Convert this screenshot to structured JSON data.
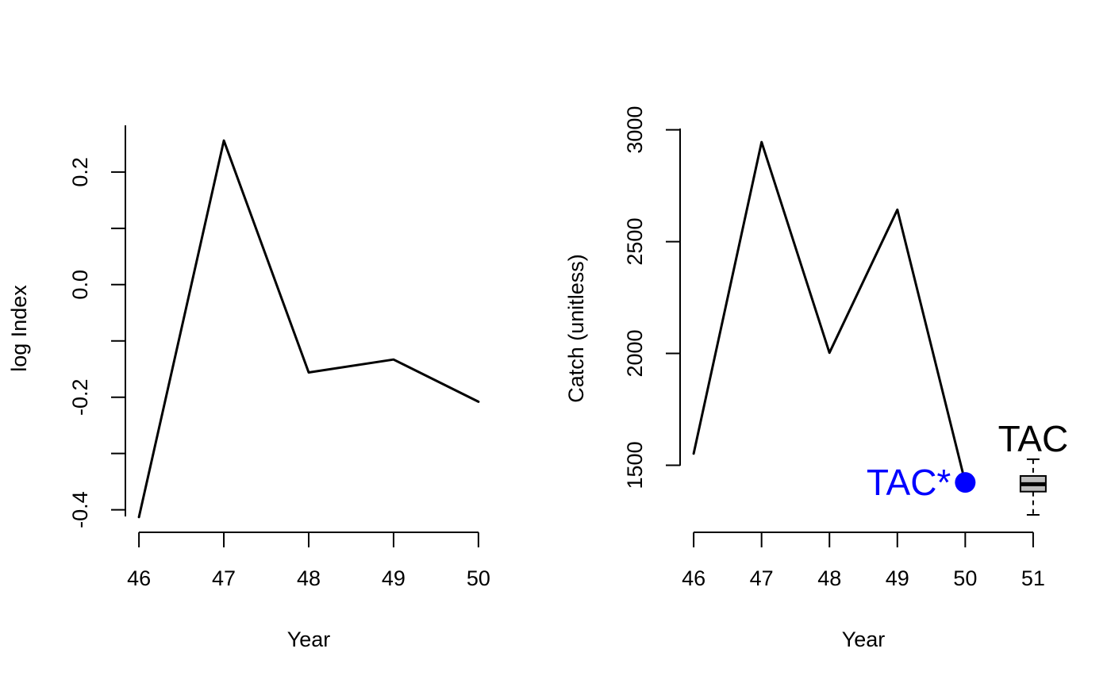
{
  "chart_data": [
    {
      "type": "line",
      "title": "",
      "xlabel": "Year",
      "ylabel": "log Index",
      "x": [
        46,
        47,
        48,
        49,
        50
      ],
      "xticks": [
        "46",
        "47",
        "48",
        "49",
        "50"
      ],
      "yticks": [
        "-0.4",
        "-0.2",
        "0.0",
        "0.2"
      ],
      "ytick_values": [
        -0.4,
        -0.2,
        0.0,
        0.2
      ],
      "minor_yticks": [
        -0.3,
        -0.1,
        0.1
      ],
      "xlim": [
        45.84,
        50.16
      ],
      "ylim": [
        -0.44,
        0.283
      ],
      "series": [
        {
          "values": [
            -0.413,
            0.256,
            -0.156,
            -0.133,
            -0.208
          ],
          "color": "#000000"
        }
      ],
      "grid": false,
      "legend": "none"
    },
    {
      "type": "line",
      "title": "",
      "xlabel": "Year",
      "ylabel": "Catch (unitless)",
      "x": [
        46,
        47,
        48,
        49,
        50
      ],
      "xticks": [
        "46",
        "47",
        "48",
        "49",
        "50",
        "51"
      ],
      "xtick_values": [
        46,
        47,
        48,
        49,
        50,
        51
      ],
      "yticks": [
        "1500",
        "2000",
        "2500",
        "3000"
      ],
      "ytick_values": [
        1500,
        2000,
        2500,
        3000
      ],
      "xlim": [
        45.8,
        51.2
      ],
      "ylim": [
        1200,
        3020
      ],
      "series": [
        {
          "values": [
            1552,
            2945,
            2003,
            2643,
            1423
          ],
          "color": "#000000"
        }
      ],
      "point": {
        "label": "TAC*",
        "x": 50,
        "y": 1423,
        "color": "#0000ff"
      },
      "boxplot": {
        "label": "TAC",
        "x": 51,
        "min": 1278,
        "q1": 1382,
        "median": 1415,
        "q3": 1452,
        "max": 1527,
        "color": "#bebebe"
      },
      "grid": false,
      "legend": "none"
    }
  ]
}
